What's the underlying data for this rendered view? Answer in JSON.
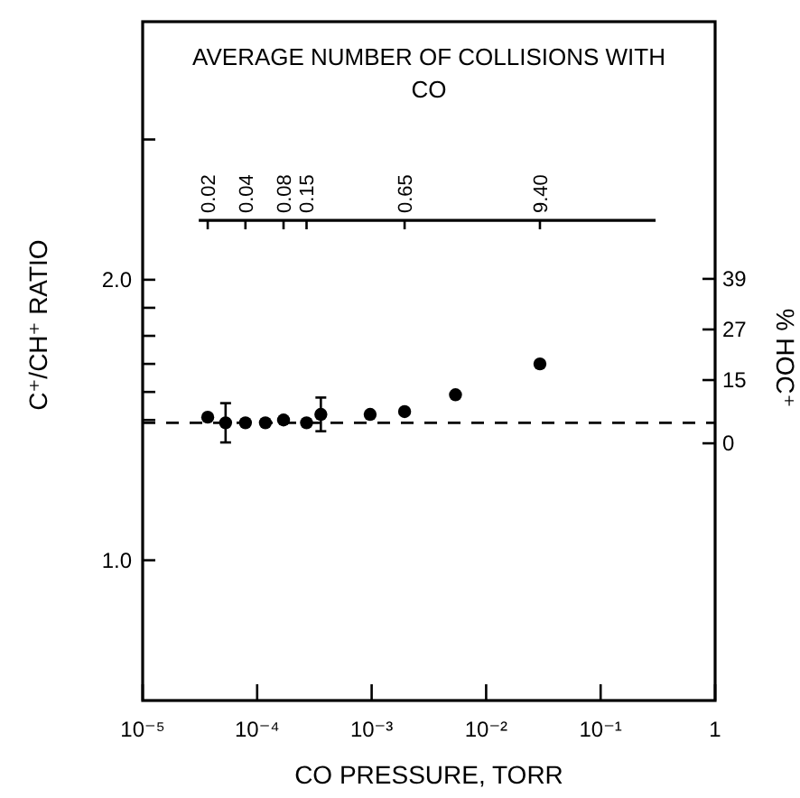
{
  "chart_data": {
    "type": "scatter",
    "xlabel": "CO PRESSURE, TORR",
    "ylabel": "C⁺/CH⁺ RATIO",
    "y2label": "% HOC⁺",
    "annotations": [
      "AVERAGE NUMBER OF COLLISIONS WITH CO",
      {
        "text": "0.02",
        "x": 3.7e-05
      },
      {
        "text": "0.04",
        "x": 7.9e-05
      },
      {
        "text": "0.08",
        "x": 0.00017
      },
      {
        "text": "0.15",
        "x": 0.00027
      },
      {
        "text": "0.65",
        "x": 0.00194
      },
      {
        "text": "9.40",
        "x": 0.0295
      }
    ],
    "log": "x",
    "xlim": [
      1e-05,
      1
    ],
    "xticks": [
      {
        "value": 1e-05,
        "label": "10⁻⁵"
      },
      {
        "value": 0.0001,
        "label": "10⁻⁴"
      },
      {
        "value": 0.001,
        "label": "10⁻³"
      },
      {
        "value": 0.01,
        "label": "10⁻²"
      },
      {
        "value": 0.1,
        "label": "10⁻¹"
      },
      1
    ],
    "ylim": [
      0.5,
      2.92
    ],
    "yticks": [
      {
        "value": 1,
        "label": "1.0"
      },
      {
        "value": 1.5,
        "label": null
      },
      {
        "value": 1.6,
        "label": null
      },
      {
        "value": 1.7,
        "label": null
      },
      {
        "value": 1.8,
        "label": null
      },
      {
        "value": 1.9,
        "label": null
      },
      {
        "value": 2,
        "label": "2.0"
      },
      {
        "value": 2.5,
        "label": null
      }
    ],
    "y2lim": [
      -61,
      100
    ],
    "y2ticks": [
      0,
      15,
      27,
      39
    ],
    "marker": "circle",
    "grid": false,
    "ref_lines": [
      {
        "axis": "y",
        "value": 1.49,
        "color": "#000000",
        "line_style": "dashed"
      }
    ],
    "series": [
      {
        "color": "#000000",
        "x": [
          3.7e-05,
          5.3e-05,
          7.9e-05,
          0.000118,
          0.00017,
          0.00027,
          0.00036,
          0.00097,
          0.00194,
          0.0054,
          0.0295
        ],
        "values": [
          1.51,
          1.49,
          1.49,
          1.49,
          1.5,
          1.49,
          1.52,
          1.52,
          1.53,
          1.59,
          1.7
        ],
        "errors": [
          null,
          0.07,
          null,
          null,
          null,
          null,
          0.06,
          null,
          null,
          null,
          null
        ]
      }
    ]
  }
}
